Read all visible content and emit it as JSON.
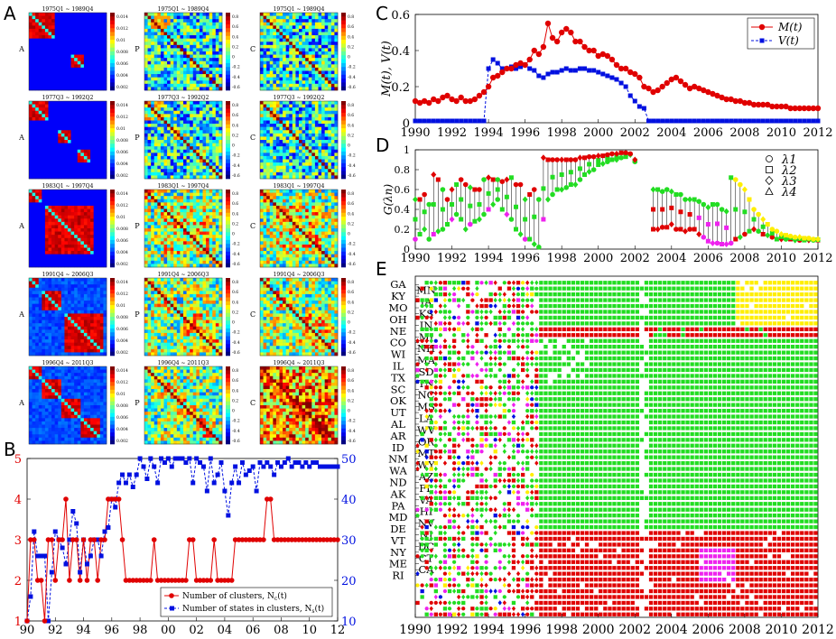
{
  "panels": {
    "A": "A",
    "B": "B",
    "C": "C",
    "D": "D",
    "E": "E"
  },
  "colors": {
    "red": "#e00000",
    "blue": "#0010e0",
    "green": "#22dd22",
    "magenta": "#ee22ee",
    "yellow": "#ffee00"
  },
  "chart_data": [
    {
      "id": "A",
      "type": "heatmap",
      "row_labels": [
        "A",
        "P",
        "C"
      ],
      "grid": [
        [
          "1975Q1 ~ 1989Q4",
          "1975Q1 ~ 1989Q4",
          "1975Q1 ~ 1989Q4"
        ],
        [
          "1977Q3 ~ 1992Q2",
          "1977Q3 ~ 1992Q2",
          "1977Q3 ~ 1992Q2"
        ],
        [
          "1983Q1 ~ 1997Q4",
          "1983Q1 ~ 1997Q4",
          "1983Q1 ~ 1997Q4"
        ],
        [
          "1991Q4 ~ 2006Q3",
          "1991Q4 ~ 2006Q3",
          "1991Q4 ~ 2006Q3"
        ],
        [
          "1996Q4 ~ 2011Q3",
          "1996Q4 ~ 2011Q3",
          "1996Q4 ~ 2011Q3"
        ]
      ],
      "colorbar_ticks_corr": [
        "0.8",
        "0.6",
        "0.4",
        "0.2",
        "0",
        "-0.2",
        "-0.4",
        "-0.6"
      ],
      "colorbar_ticks_A": [
        "0.014",
        "0.012",
        "0.01",
        "0.008",
        "0.006",
        "0.004",
        "0.002"
      ]
    },
    {
      "id": "B",
      "type": "line",
      "x": [
        90,
        90.25,
        90.5,
        90.75,
        91,
        91.25,
        91.5,
        91.75,
        92,
        92.25,
        92.5,
        92.75,
        93,
        93.25,
        93.5,
        93.75,
        94,
        94.25,
        94.5,
        94.75,
        95,
        95.25,
        95.5,
        95.75,
        96,
        96.25,
        96.5,
        96.75,
        97,
        97.25,
        97.5,
        97.75,
        98,
        98.25,
        98.5,
        98.75,
        99,
        99.25,
        99.5,
        99.75,
        100,
        100.25,
        100.5,
        100.75,
        101,
        101.25,
        101.5,
        101.75,
        102,
        102.25,
        102.5,
        102.75,
        103,
        103.25,
        103.5,
        103.75,
        104,
        104.25,
        104.5,
        104.75,
        105,
        105.25,
        105.5,
        105.75,
        106,
        106.25,
        106.5,
        106.75,
        107,
        107.25,
        107.5,
        107.75,
        108,
        108.25,
        108.5,
        108.75,
        109,
        109.25,
        109.5,
        109.75,
        110,
        110.25,
        110.5,
        110.75,
        111,
        111.25,
        111.5,
        111.75,
        112
      ],
      "series": [
        {
          "name": "Number of clusters, N_c(t)",
          "axis": "left",
          "values": [
            1,
            3,
            3,
            2,
            2,
            1,
            3,
            3,
            2,
            3,
            3,
            4,
            2,
            3,
            3,
            2,
            3,
            2,
            3,
            3,
            2,
            3,
            3,
            4,
            4,
            4,
            4,
            3,
            2,
            2,
            2,
            2,
            2,
            2,
            2,
            2,
            3,
            2,
            2,
            2,
            2,
            2,
            2,
            2,
            2,
            2,
            3,
            3,
            2,
            2,
            2,
            2,
            2,
            3,
            2,
            2,
            2,
            2,
            2,
            3,
            3,
            3,
            3,
            3,
            3,
            3,
            3,
            3,
            4,
            4,
            3,
            3,
            3,
            3,
            3,
            3,
            3,
            3,
            3,
            3,
            3,
            3,
            3,
            3,
            3,
            3,
            3,
            3,
            3
          ]
        },
        {
          "name": "Number of states in clusters, N_s(t)",
          "axis": "right",
          "values": [
            10,
            16,
            32,
            26,
            26,
            26,
            10,
            22,
            32,
            30,
            28,
            24,
            30,
            37,
            34,
            22,
            30,
            24,
            26,
            30,
            30,
            26,
            32,
            33,
            40,
            38,
            44,
            46,
            44,
            46,
            43,
            46,
            50,
            48,
            45,
            50,
            48,
            44,
            50,
            49,
            50,
            48,
            50,
            50,
            50,
            49,
            50,
            44,
            50,
            49,
            48,
            42,
            50,
            44,
            46,
            49,
            42,
            36,
            44,
            48,
            44,
            49,
            46,
            47,
            48,
            42,
            49,
            48,
            49,
            48,
            46,
            49,
            48,
            49,
            50,
            48,
            49,
            49,
            48,
            49,
            48,
            49,
            49,
            48,
            48,
            48,
            48,
            48,
            48
          ]
        }
      ],
      "xticks": [
        "90",
        "92",
        "94",
        "96",
        "98",
        "00",
        "02",
        "04",
        "06",
        "08",
        "10",
        "12"
      ],
      "ylim": [
        1,
        5
      ],
      "ylim_right": [
        10,
        50
      ],
      "yticks": [
        "1",
        "2",
        "3",
        "4",
        "5"
      ],
      "yticks_right": [
        "10",
        "20",
        "30",
        "40",
        "50"
      ],
      "legend": [
        "Number of clusters, N",
        "Number of states in clusters, N"
      ],
      "legend_sub": [
        "c",
        "s"
      ],
      "legend_suffix": "(t)"
    },
    {
      "id": "C",
      "type": "line",
      "xlim": [
        1990,
        2012
      ],
      "ylim": [
        0,
        0.6
      ],
      "xticks": [
        "1990",
        "1992",
        "1994",
        "1996",
        "1998",
        "2000",
        "2002",
        "2004",
        "2006",
        "2008",
        "2010",
        "2012"
      ],
      "yticks": [
        "0",
        "0.2",
        "0.4",
        "0.6"
      ],
      "ylabel": "M(t), V(t)",
      "x": [
        1990.0,
        1990.25,
        1990.5,
        1990.75,
        1991.0,
        1991.25,
        1991.5,
        1991.75,
        1992.0,
        1992.25,
        1992.5,
        1992.75,
        1993.0,
        1993.25,
        1993.5,
        1993.75,
        1994.0,
        1994.25,
        1994.5,
        1994.75,
        1995.0,
        1995.25,
        1995.5,
        1995.75,
        1996.0,
        1996.25,
        1996.5,
        1996.75,
        1997.0,
        1997.25,
        1997.5,
        1997.75,
        1998.0,
        1998.25,
        1998.5,
        1998.75,
        1999.0,
        1999.25,
        1999.5,
        1999.75,
        2000.0,
        2000.25,
        2000.5,
        2000.75,
        2001.0,
        2001.25,
        2001.5,
        2001.75,
        2002.0,
        2002.25,
        2002.5,
        2002.75,
        2003.0,
        2003.25,
        2003.5,
        2003.75,
        2004.0,
        2004.25,
        2004.5,
        2004.75,
        2005.0,
        2005.25,
        2005.5,
        2005.75,
        2006.0,
        2006.25,
        2006.5,
        2006.75,
        2007.0,
        2007.25,
        2007.5,
        2007.75,
        2008.0,
        2008.25,
        2008.5,
        2008.75,
        2009.0,
        2009.25,
        2009.5,
        2009.75,
        2010.0,
        2010.25,
        2010.5,
        2010.75,
        2011.0,
        2011.25,
        2011.5,
        2011.75,
        2012.0
      ],
      "series": [
        {
          "name": "M(t)",
          "values": [
            0.12,
            0.11,
            0.12,
            0.11,
            0.13,
            0.12,
            0.14,
            0.15,
            0.13,
            0.12,
            0.14,
            0.12,
            0.12,
            0.13,
            0.15,
            0.17,
            0.2,
            0.25,
            0.26,
            0.28,
            0.3,
            0.3,
            0.32,
            0.33,
            0.32,
            0.35,
            0.4,
            0.38,
            0.42,
            0.55,
            0.47,
            0.45,
            0.5,
            0.52,
            0.5,
            0.45,
            0.45,
            0.42,
            0.4,
            0.4,
            0.37,
            0.38,
            0.37,
            0.35,
            0.32,
            0.3,
            0.3,
            0.28,
            0.27,
            0.25,
            0.2,
            0.19,
            0.17,
            0.18,
            0.2,
            0.22,
            0.24,
            0.25,
            0.23,
            0.21,
            0.19,
            0.2,
            0.19,
            0.18,
            0.17,
            0.16,
            0.15,
            0.14,
            0.13,
            0.13,
            0.12,
            0.12,
            0.11,
            0.11,
            0.1,
            0.1,
            0.1,
            0.1,
            0.09,
            0.09,
            0.09,
            0.09,
            0.08,
            0.08,
            0.08,
            0.08,
            0.08,
            0.08,
            0.08
          ]
        },
        {
          "name": "V(t)",
          "values": [
            0.01,
            0.01,
            0.01,
            0.01,
            0.01,
            0.01,
            0.01,
            0.01,
            0.01,
            0.01,
            0.01,
            0.01,
            0.01,
            0.01,
            0.01,
            0.01,
            0.3,
            0.35,
            0.33,
            0.3,
            0.3,
            0.31,
            0.3,
            0.31,
            0.32,
            0.3,
            0.29,
            0.26,
            0.25,
            0.27,
            0.28,
            0.28,
            0.29,
            0.3,
            0.29,
            0.29,
            0.3,
            0.3,
            0.29,
            0.29,
            0.28,
            0.27,
            0.26,
            0.25,
            0.24,
            0.22,
            0.2,
            0.15,
            0.12,
            0.09,
            0.08,
            0.01,
            0.01,
            0.01,
            0.01,
            0.01,
            0.01,
            0.01,
            0.01,
            0.01,
            0.01,
            0.01,
            0.01,
            0.01,
            0.01,
            0.01,
            0.01,
            0.01,
            0.01,
            0.01,
            0.01,
            0.01,
            0.01,
            0.01,
            0.01,
            0.01,
            0.01,
            0.01,
            0.01,
            0.01,
            0.01,
            0.01,
            0.01,
            0.01,
            0.01,
            0.01,
            0.01,
            0.01,
            0.01
          ]
        }
      ],
      "legend": [
        "M(t)",
        "V(t)"
      ]
    },
    {
      "id": "D",
      "type": "scatter",
      "xlim": [
        1990,
        2012
      ],
      "ylim": [
        0,
        1
      ],
      "xticks": [
        "1990",
        "1992",
        "1994",
        "1996",
        "1998",
        "2000",
        "2002",
        "2004",
        "2006",
        "2008",
        "2010",
        "2012"
      ],
      "yticks": [
        "0",
        "0.2",
        "0.4",
        "0.6",
        "0.8",
        "1"
      ],
      "ylabel": "G(λn)",
      "legend": [
        "λ1",
        "λ2",
        "λ3",
        "λ4"
      ],
      "note": "values per quarter; gap 2002.25-2002.75",
      "upper": [
        0.5,
        0.5,
        0.55,
        0.45,
        0.75,
        0.7,
        0.6,
        0.5,
        0.6,
        0.65,
        0.7,
        0.65,
        0.62,
        0.6,
        0.6,
        0.7,
        0.72,
        0.7,
        0.7,
        0.68,
        0.7,
        0.72,
        0.65,
        0.65,
        0.5,
        0.55,
        0.6,
        0.5,
        0.92,
        0.9,
        0.9,
        0.9,
        0.9,
        0.9,
        0.9,
        0.9,
        0.92,
        0.92,
        0.93,
        0.93,
        0.94,
        0.94,
        0.95,
        0.96,
        0.96,
        0.97,
        0.97,
        0.96,
        0.9,
        null,
        null,
        null,
        0.6,
        0.6,
        0.58,
        0.6,
        0.58,
        0.55,
        0.55,
        0.5,
        0.5,
        0.5,
        0.48,
        0.45,
        0.42,
        0.45,
        0.45,
        0.4,
        0.38,
        0.72,
        0.7,
        0.65,
        0.6,
        0.5,
        0.4,
        0.35,
        0.3,
        0.25,
        0.2,
        0.18,
        0.15,
        0.14,
        0.13,
        0.12,
        0.12,
        0.11,
        0.11,
        0.1,
        0.1
      ],
      "lower": [
        0.1,
        0.15,
        0.2,
        0.1,
        0.15,
        0.18,
        0.2,
        0.25,
        0.3,
        0.35,
        0.3,
        0.2,
        0.25,
        0.28,
        0.3,
        0.35,
        0.4,
        0.45,
        0.5,
        0.4,
        0.35,
        0.3,
        0.2,
        0.15,
        0.1,
        0.1,
        0.05,
        0.02,
        0.3,
        0.5,
        0.55,
        0.6,
        0.6,
        0.62,
        0.65,
        0.65,
        0.7,
        0.75,
        0.78,
        0.8,
        0.85,
        0.86,
        0.88,
        0.9,
        0.9,
        0.92,
        0.93,
        0.95,
        0.88,
        null,
        null,
        null,
        0.2,
        0.2,
        0.22,
        0.22,
        0.25,
        0.2,
        0.2,
        0.18,
        0.2,
        0.2,
        0.15,
        0.12,
        0.08,
        0.06,
        0.06,
        0.05,
        0.05,
        0.06,
        0.1,
        0.12,
        0.15,
        0.18,
        0.2,
        0.18,
        0.15,
        0.14,
        0.12,
        0.1,
        0.1,
        0.1,
        0.1,
        0.09,
        0.09,
        0.09,
        0.09,
        0.09,
        0.09
      ]
    },
    {
      "id": "E",
      "type": "scatter",
      "xlim": [
        1990,
        2012
      ],
      "xticks": [
        "1990",
        "1992",
        "1994",
        "1996",
        "1998",
        "2000",
        "2002",
        "2004",
        "2006",
        "2008",
        "2010",
        "2012"
      ],
      "states_left": [
        "GA",
        "KY",
        "MO",
        "OH",
        "NE",
        "CO",
        "WI",
        "IL",
        "TX",
        "SC",
        "OK",
        "UT",
        "AL",
        "AR",
        "ID",
        "NM",
        "WA",
        "ND",
        "AK",
        "PA",
        "MD",
        "DE",
        "VT",
        "NY",
        "ME",
        "RI"
      ],
      "states_right": [
        "MN",
        "IA",
        "KS",
        "IN",
        "MI",
        "NH",
        "MA",
        "SD",
        "TN",
        "NC",
        "MS",
        "LA",
        "WV",
        "OR",
        "MT",
        "WY",
        "AZ",
        "FL",
        "VA",
        "HI",
        "NV",
        "NJ",
        "DC",
        "CT",
        "CA"
      ],
      "row_groups": [
        "yellowgreen",
        "yellowgreen",
        "yellowgreen",
        "yellowgreen",
        "yellowgreen",
        "yellowgreen",
        "yellowgreen",
        "yellowgreen",
        "redgreen",
        "redgreen",
        "green",
        "green",
        "green",
        "green",
        "green",
        "green",
        "green",
        "green",
        "green",
        "green",
        "green",
        "green",
        "green",
        "green",
        "green",
        "green",
        "green",
        "green",
        "green",
        "green",
        "green",
        "green",
        "green",
        "green",
        "green",
        "green",
        "green",
        "green",
        "green",
        "green",
        "green",
        "green",
        "green",
        "red",
        "red",
        "red",
        "red",
        "red",
        "red",
        "red",
        "red",
        "red",
        "red",
        "red",
        "red",
        "red",
        "red",
        "red"
      ]
    }
  ]
}
